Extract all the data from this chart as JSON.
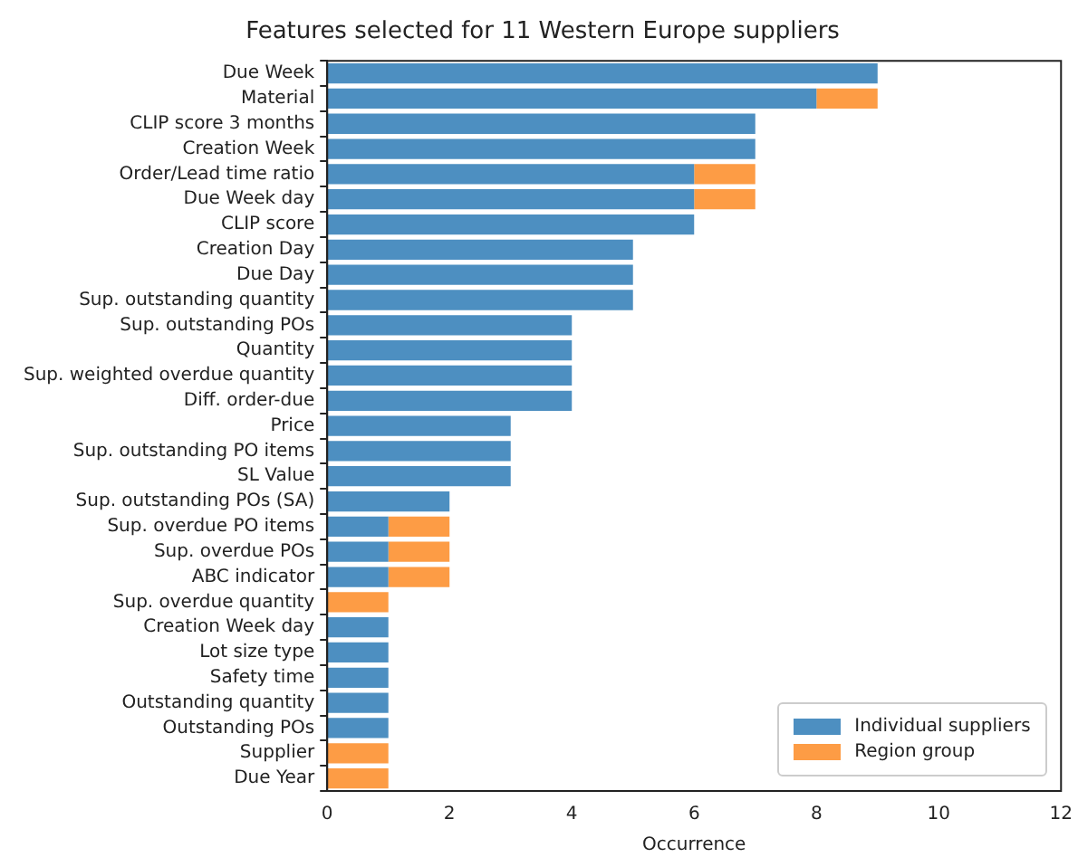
{
  "chart_data": {
    "type": "bar",
    "orientation": "horizontal",
    "stacked": true,
    "title": "Features selected for 11 Western Europe suppliers",
    "xlabel": "Occurrence",
    "categories": [
      "Due Week",
      "Material",
      "CLIP score 3 months",
      "Creation Week",
      "Order/Lead time ratio",
      "Due Week day",
      "CLIP score",
      "Creation Day",
      "Due Day",
      "Sup. outstanding quantity",
      "Sup. outstanding POs",
      "Quantity",
      "Sup. weighted overdue quantity",
      "Diff. order-due",
      "Price",
      "Sup. outstanding PO items",
      "SL Value",
      "Sup. outstanding POs (SA)",
      "Sup. overdue PO items",
      "Sup. overdue POs",
      "ABC indicator",
      "Sup. overdue quantity",
      "Creation Week day",
      "Lot size type",
      "Safety time",
      "Outstanding quantity",
      "Outstanding POs",
      "Supplier",
      "Due Year"
    ],
    "series": [
      {
        "name": "Individual suppliers",
        "color": "#4d8fc1",
        "values": [
          9,
          8,
          7,
          7,
          6,
          6,
          6,
          5,
          5,
          5,
          4,
          4,
          4,
          4,
          3,
          3,
          3,
          2,
          1,
          1,
          1,
          0,
          1,
          1,
          1,
          1,
          1,
          0,
          0
        ]
      },
      {
        "name": "Region group",
        "color": "#fd9c45",
        "values": [
          0,
          1,
          0,
          0,
          1,
          1,
          0,
          0,
          0,
          0,
          0,
          0,
          0,
          0,
          0,
          0,
          0,
          0,
          1,
          1,
          1,
          1,
          0,
          0,
          0,
          0,
          0,
          1,
          1
        ]
      }
    ],
    "xlim": [
      0,
      12
    ],
    "xticks": [
      0,
      2,
      4,
      6,
      8,
      10,
      12
    ],
    "legend": "bottom right",
    "grid": false
  }
}
